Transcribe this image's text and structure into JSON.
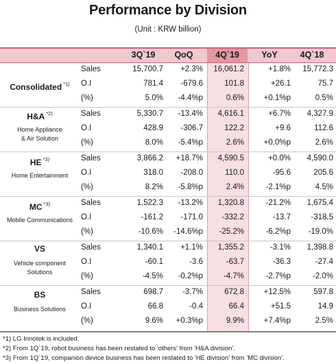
{
  "title": "Performance by Division",
  "unit": "(Unit : KRW billion)",
  "headers": [
    "3Q`19",
    "QoQ",
    "4Q`19",
    "YoY",
    "4Q`18"
  ],
  "divisions": [
    {
      "name": "Consolidated",
      "note": "*1)",
      "sub": [],
      "rows": [
        {
          "metric": "Sales",
          "v": [
            "15,700.7",
            "+2.3%",
            "16,061.2",
            "+1.8%",
            "15,772.3"
          ]
        },
        {
          "metric": "O.I",
          "v": [
            "781.4",
            "-679.6",
            "101.8",
            "+26.1",
            "75.7"
          ]
        },
        {
          "metric": "(%)",
          "v": [
            "5.0%",
            "-4.4%p",
            "0.6%",
            "+0.1%p",
            "0.5%"
          ]
        }
      ]
    },
    {
      "name": "H&A",
      "note": "*2)",
      "sub": [
        "Home Appliance",
        "& Air Solution"
      ],
      "rows": [
        {
          "metric": "Sales",
          "v": [
            "5,330.7",
            "-13.4%",
            "4,616.1",
            "+6.7%",
            "4,327.9"
          ]
        },
        {
          "metric": "O.I",
          "v": [
            "428.9",
            "-306.7",
            "122.2",
            "+9.6",
            "112.6"
          ]
        },
        {
          "metric": "(%)",
          "v": [
            "8.0%",
            "-5.4%p",
            "2.6%",
            "+0.0%p",
            "2.6%"
          ]
        }
      ]
    },
    {
      "name": "HE",
      "note": "*3)",
      "sub": [
        "Home Entertainment"
      ],
      "rows": [
        {
          "metric": "Sales",
          "v": [
            "3,866.2",
            "+18.7%",
            "4,590.5",
            "+0.0%",
            "4,590.0"
          ]
        },
        {
          "metric": "O.I",
          "v": [
            "318.0",
            "-208.0",
            "110.0",
            "-95.6",
            "205.6"
          ]
        },
        {
          "metric": "(%)",
          "v": [
            "8.2%",
            "-5.8%p",
            "2.4%",
            "-2.1%p",
            "4.5%"
          ]
        }
      ]
    },
    {
      "name": "MC",
      "note": "*3)",
      "sub": [
        "Mobile Communications"
      ],
      "rows": [
        {
          "metric": "Sales",
          "v": [
            "1,522.3",
            "-13.2%",
            "1,320.8",
            "-21.2%",
            "1,675.4"
          ]
        },
        {
          "metric": "O.I",
          "v": [
            "-161.2",
            "-171.0",
            "-332.2",
            "-13.7",
            "-318.5"
          ]
        },
        {
          "metric": "(%)",
          "v": [
            "-10.6%",
            "-14.6%p",
            "-25.2%",
            "-6.2%p",
            "-19.0%"
          ]
        }
      ]
    },
    {
      "name": "VS",
      "note": "",
      "sub": [
        "Vehicle component",
        "Solutions"
      ],
      "rows": [
        {
          "metric": "Sales",
          "v": [
            "1,340.1",
            "+1.1%",
            "1,355.2",
            "-3.1%",
            "1,398.8"
          ]
        },
        {
          "metric": "O.I",
          "v": [
            "-60.1",
            "-3.6",
            "-63.7",
            "-36.3",
            "-27.4"
          ]
        },
        {
          "metric": "(%)",
          "v": [
            "-4.5%",
            "-0.2%p",
            "-4.7%",
            "-2.7%p",
            "-2.0%"
          ]
        }
      ]
    },
    {
      "name": "BS",
      "note": "",
      "sub": [
        "Business Solutions"
      ],
      "rows": [
        {
          "metric": "Sales",
          "v": [
            "698.7",
            "-3.7%",
            "672.8",
            "+12.5%",
            "597.8"
          ]
        },
        {
          "metric": "O.I",
          "v": [
            "66.8",
            "-0.4",
            "66.4",
            "+51.5",
            "14.9"
          ]
        },
        {
          "metric": "(%)",
          "v": [
            "9.6%",
            "+0.3%p",
            "9.9%",
            "+7.4%p",
            "2.5%"
          ]
        }
      ]
    }
  ],
  "footnotes": [
    "*1) LG Innotek is included.",
    "*2) From 1Q`19, robot business has been restated to 'others' from 'H&A division'.",
    "*3) From 1Q`19, companion device business has been restated to 'HE division' from 'MC division'."
  ]
}
